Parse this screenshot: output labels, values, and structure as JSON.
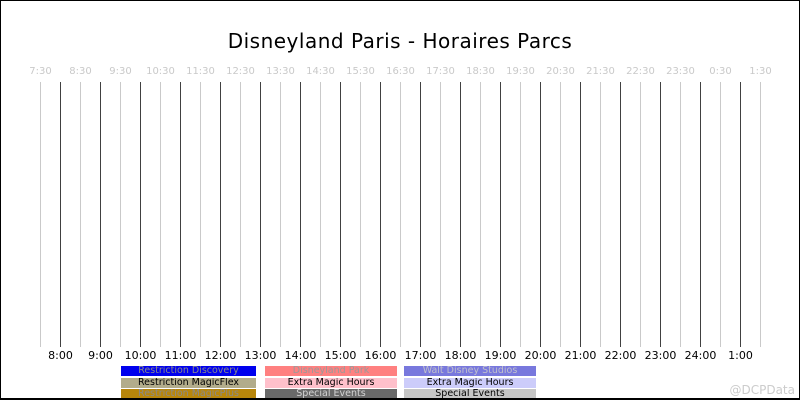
{
  "title": "Disneyland Paris - Horaires Parcs",
  "watermark": "@DCPData",
  "colors": {
    "background": "#ffffff",
    "border": "#000000",
    "grid_hour_line": "#404040",
    "grid_half_hour_line": "#c9c9c9",
    "top_tick_label": "#c9c9c9",
    "bottom_tick_label": "#000000",
    "watermark": "#cccccc"
  },
  "chart_data": {
    "type": "timeline",
    "title": "Disneyland Paris - Horaires Parcs",
    "x_axis": {
      "start_hour": 7.5,
      "end_hour": 25.5,
      "top_tick_labels": [
        "7:30",
        "8:30",
        "9:30",
        "10:30",
        "11:30",
        "12:30",
        "13:30",
        "14:30",
        "15:30",
        "16:30",
        "17:30",
        "18:30",
        "19:30",
        "20:30",
        "21:30",
        "22:30",
        "23:30",
        "0:30",
        "1:30"
      ],
      "bottom_tick_labels": [
        "8:00",
        "9:00",
        "10:00",
        "11:00",
        "12:00",
        "13:00",
        "14:00",
        "15:00",
        "16:00",
        "17:00",
        "18:00",
        "19:00",
        "20:00",
        "21:00",
        "22:00",
        "23:00",
        "24:00",
        "1:00"
      ]
    },
    "grid": "vertical gridlines every half hour; dark lines at full hours, light lines at half hours",
    "series": [],
    "legend_position": "bottom-center"
  },
  "legend": {
    "columns": [
      {
        "items": [
          {
            "label": "Restriction Discovery",
            "bg": "#0000ee",
            "fg": "#8a8a8a"
          },
          {
            "label": "Restriction MagicFlex",
            "bg": "#b2ac8b",
            "fg": "#000000"
          },
          {
            "label": "Restriction MagicPlus",
            "bg": "#b8860b",
            "fg": "#8a8a8a"
          }
        ]
      },
      {
        "items": [
          {
            "label": "Disneyland Park",
            "bg": "#ff8080",
            "fg": "#9a9a9a"
          },
          {
            "label": "Extra Magic Hours",
            "bg": "#ffc0cb",
            "fg": "#000000"
          },
          {
            "label": "Special Events",
            "bg": "#696969",
            "fg": "#d3d3d3"
          }
        ]
      },
      {
        "items": [
          {
            "label": "Walt Disney Studios",
            "bg": "#7878dd",
            "fg": "#c0c0cc"
          },
          {
            "label": "Extra Magic Hours",
            "bg": "#ccccfa",
            "fg": "#000000"
          },
          {
            "label": "Special Events",
            "bg": "#c6c6c6",
            "fg": "#000000"
          }
        ]
      }
    ]
  }
}
